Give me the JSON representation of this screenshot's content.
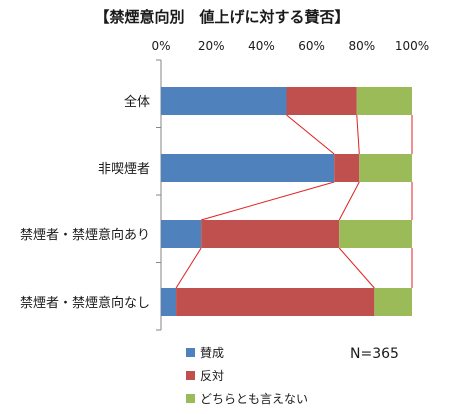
{
  "chart_data": {
    "type": "bar",
    "orientation": "horizontal",
    "stacked": true,
    "title": "【禁煙意向別　値上げに対する賛否】",
    "categories": [
      "全体",
      "非喫煙者",
      "禁煙者・禁煙意向あり",
      "禁煙者・禁煙意向なし"
    ],
    "series": [
      {
        "name": "賛成",
        "values": [
          50,
          69,
          16,
          6
        ],
        "color": "#4f81bd"
      },
      {
        "name": "反対",
        "values": [
          28,
          10,
          55,
          79
        ],
        "color": "#c0504d"
      },
      {
        "name": "どちらとも言えない",
        "values": [
          22,
          21,
          29,
          15
        ],
        "color": "#9bbb59"
      }
    ],
    "xlim": [
      0,
      100
    ],
    "x_ticks": [
      "0%",
      "20%",
      "40%",
      "60%",
      "80%",
      "100%"
    ],
    "x_axis_position": "top",
    "grid": false,
    "connector_lines": true,
    "connector_color": "#e02020",
    "legend_position": "bottom-left",
    "annotation": "N=365"
  }
}
